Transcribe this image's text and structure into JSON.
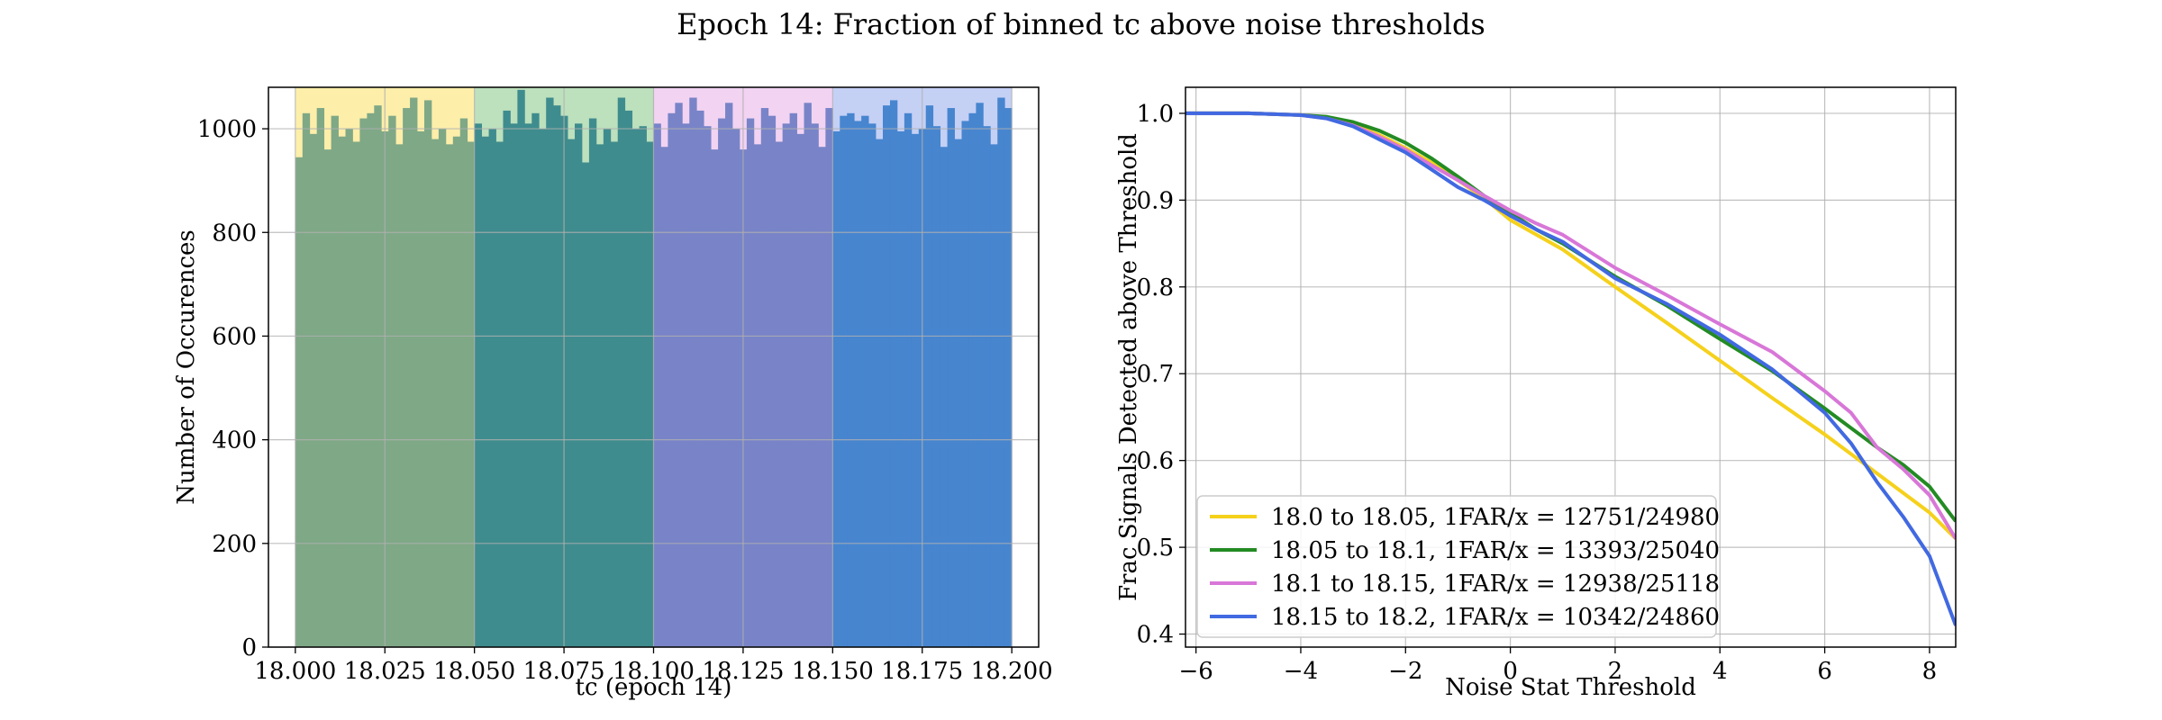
{
  "figure": {
    "suptitle": "Epoch 14: Fraction of binned tc above noise thresholds"
  },
  "chart_data": [
    {
      "type": "bar",
      "subtype": "histogram",
      "title": "",
      "xlabel": "tc (epoch 14)",
      "ylabel": "Number of Occurences",
      "xlim": [
        17.9925,
        18.2075
      ],
      "ylim": [
        0,
        1080
      ],
      "xticks": [
        18.0,
        18.025,
        18.05,
        18.075,
        18.1,
        18.125,
        18.15,
        18.175,
        18.2
      ],
      "xtick_labels": [
        "18.000",
        "18.025",
        "18.050",
        "18.075",
        "18.100",
        "18.125",
        "18.150",
        "18.175",
        "18.200"
      ],
      "yticks": [
        0,
        200,
        400,
        600,
        800,
        1000
      ],
      "grid": true,
      "bin_start": 18.0,
      "bin_width": 0.002,
      "values": [
        945,
        1030,
        990,
        1040,
        960,
        1025,
        985,
        1000,
        975,
        1020,
        1030,
        1045,
        995,
        1025,
        970,
        1040,
        1060,
        995,
        1055,
        980,
        1000,
        970,
        985,
        1020,
        975,
        1010,
        985,
        1000,
        975,
        1035,
        1010,
        1075,
        1010,
        1030,
        1000,
        1060,
        1045,
        1025,
        980,
        1010,
        935,
        1020,
        970,
        1000,
        975,
        1060,
        1035,
        1000,
        1005,
        975,
        1010,
        965,
        1030,
        1050,
        1010,
        1060,
        1035,
        1005,
        960,
        1020,
        1050,
        1000,
        960,
        1020,
        970,
        1040,
        1025,
        975,
        1010,
        1030,
        990,
        1050,
        1010,
        965,
        1040,
        995,
        1025,
        1030,
        1015,
        1025,
        1010,
        980,
        1045,
        1055,
        995,
        1030,
        990,
        1000,
        1045,
        1005,
        965,
        1040,
        980,
        1015,
        1030,
        1050,
        1005,
        970,
        1060,
        1040
      ],
      "regions": [
        {
          "start": 18.0,
          "end": 18.05,
          "bar_color": "#7fa886",
          "shade_color": "#fdeeaa"
        },
        {
          "start": 18.05,
          "end": 18.1,
          "bar_color": "#3f8c8e",
          "shade_color": "#bde0bd"
        },
        {
          "start": 18.1,
          "end": 18.15,
          "bar_color": "#7884c7",
          "shade_color": "#f2d3f2"
        },
        {
          "start": 18.15,
          "end": 18.2,
          "bar_color": "#4785cf",
          "shade_color": "#c5d0f5"
        }
      ]
    },
    {
      "type": "line",
      "title": "",
      "xlabel": "Noise Stat Threshold",
      "ylabel": "Frac Signals Detected above Threshold",
      "xlim": [
        -6.2,
        8.5
      ],
      "ylim": [
        0.385,
        1.03
      ],
      "xticks": [
        -6,
        -4,
        -2,
        0,
        2,
        4,
        6,
        8
      ],
      "xtick_labels": [
        "−6",
        "−4",
        "−2",
        "0",
        "2",
        "4",
        "6",
        "8"
      ],
      "yticks": [
        0.4,
        0.5,
        0.6,
        0.7,
        0.8,
        0.9,
        1.0
      ],
      "ytick_labels": [
        "0.4",
        "0.5",
        "0.6",
        "0.7",
        "0.8",
        "0.9",
        "1.0"
      ],
      "grid": true,
      "legend_position": "lower-left",
      "series": [
        {
          "name": "18.0 to 18.05, 1FAR/x = 12751/24980",
          "color": "#f5d11c",
          "x": [
            -6.2,
            -5,
            -4,
            -3.5,
            -3,
            -2.5,
            -2,
            -1.5,
            -1,
            -0.5,
            0,
            0.5,
            1,
            2,
            3,
            4,
            5,
            6,
            7,
            8,
            8.5
          ],
          "y": [
            1.0,
            1.0,
            0.998,
            0.995,
            0.987,
            0.975,
            0.96,
            0.943,
            0.923,
            0.902,
            0.877,
            0.86,
            0.843,
            0.8,
            0.758,
            0.715,
            0.672,
            0.63,
            0.585,
            0.54,
            0.51
          ]
        },
        {
          "name": "18.05 to 18.1, 1FAR/x = 13393/25040",
          "color": "#238b23",
          "x": [
            -6.2,
            -5,
            -4,
            -3.5,
            -3,
            -2.5,
            -2,
            -1.5,
            -1,
            -0.5,
            0,
            0.5,
            1,
            2,
            3,
            4,
            5,
            6,
            7,
            7.5,
            8,
            8.5
          ],
          "y": [
            1.0,
            1.0,
            0.998,
            0.996,
            0.99,
            0.98,
            0.966,
            0.948,
            0.927,
            0.905,
            0.885,
            0.866,
            0.85,
            0.812,
            0.778,
            0.74,
            0.703,
            0.66,
            0.615,
            0.595,
            0.57,
            0.53
          ]
        },
        {
          "name": "18.1 to 18.15, 1FAR/x = 12938/25118",
          "color": "#d877d8",
          "x": [
            -6.2,
            -5,
            -4,
            -3.5,
            -3,
            -2.5,
            -2,
            -1.5,
            -1,
            -0.5,
            0,
            0.5,
            1,
            2,
            3,
            4,
            5,
            6,
            6.5,
            7,
            7.5,
            8,
            8.5
          ],
          "y": [
            1.0,
            1.0,
            0.998,
            0.994,
            0.986,
            0.973,
            0.958,
            0.94,
            0.923,
            0.905,
            0.888,
            0.873,
            0.86,
            0.822,
            0.79,
            0.757,
            0.725,
            0.68,
            0.655,
            0.615,
            0.59,
            0.56,
            0.51
          ]
        },
        {
          "name": "18.15 to 18.2, 1FAR/x = 10342/24860",
          "color": "#4169e1",
          "x": [
            -6.2,
            -5,
            -4,
            -3.5,
            -3,
            -2.5,
            -2,
            -1.5,
            -1,
            -0.5,
            0,
            0.5,
            1,
            2,
            3,
            4,
            5,
            6,
            6.5,
            7,
            7.5,
            8,
            8.5
          ],
          "y": [
            1.0,
            1.0,
            0.998,
            0.994,
            0.985,
            0.97,
            0.955,
            0.935,
            0.915,
            0.9,
            0.882,
            0.866,
            0.852,
            0.81,
            0.78,
            0.745,
            0.705,
            0.655,
            0.62,
            0.575,
            0.535,
            0.49,
            0.41
          ]
        }
      ]
    }
  ]
}
